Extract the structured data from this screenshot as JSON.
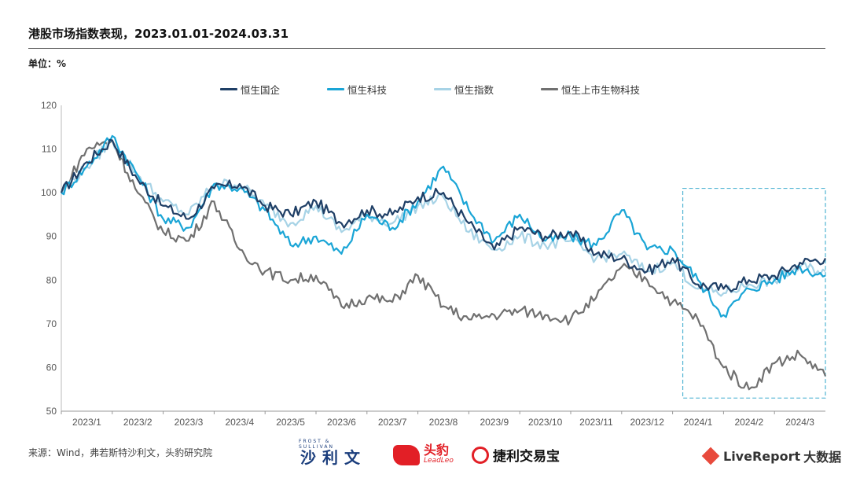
{
  "header": {
    "title": "港股市场指数表现，2023.01.01-2024.03.31",
    "unit_label": "单位：%"
  },
  "footer": {
    "source": "来源：Wind，弗若斯特沙利文，头豹研究院",
    "logo_shaliwen": "沙利文",
    "logo_shaliwen_sub": "FROST & SULLIVAN",
    "logo_leadleo": "头豹",
    "logo_leadleo_sub": "LeadLeo",
    "logo_jieli": "捷利交易宝",
    "logo_livereport": "LiveReport",
    "logo_livereport_suffix": "大数据"
  },
  "colors": {
    "hscei": "#1f3f66",
    "hstech": "#1aa5d6",
    "hsi": "#a7d3e6",
    "biotech": "#707070",
    "highlight_box": "#4fb3d2"
  },
  "chart_data": {
    "type": "line",
    "ylim": [
      50,
      120
    ],
    "yticks": [
      50,
      60,
      70,
      80,
      90,
      100,
      110,
      120
    ],
    "xticks": [
      "2023/1",
      "2023/2",
      "2023/3",
      "2023/4",
      "2023/5",
      "2023/6",
      "2023/7",
      "2023/8",
      "2023/9",
      "2023/10",
      "2023/11",
      "2023/12",
      "2024/1",
      "2024/2",
      "2024/3"
    ],
    "x_months": [
      0,
      0.5,
      1,
      1.5,
      2,
      2.5,
      3,
      3.5,
      4,
      4.5,
      5,
      5.5,
      6,
      6.5,
      7,
      7.5,
      8,
      8.5,
      9,
      9.5,
      10,
      10.5,
      11,
      11.5,
      12,
      12.5,
      13,
      13.5,
      14,
      14.5,
      15
    ],
    "highlight_range": {
      "x": [
        12.2,
        15.0
      ],
      "y": [
        53,
        101
      ]
    },
    "series": [
      {
        "name": "恒生国企",
        "key": "hscei",
        "values": [
          100,
          107,
          112,
          103,
          97,
          94,
          101,
          102,
          97,
          95,
          98,
          93,
          96,
          95,
          99,
          100,
          93,
          87,
          92,
          90,
          91,
          86,
          85,
          82,
          85,
          79,
          78,
          80,
          81,
          84,
          85
        ]
      },
      {
        "name": "恒生科技",
        "key": "hstech",
        "values": [
          100,
          106,
          113,
          104,
          94,
          92,
          102,
          101,
          96,
          88,
          90,
          86,
          95,
          92,
          98,
          106,
          96,
          89,
          95,
          89,
          90,
          88,
          96,
          87,
          87,
          80,
          72,
          78,
          80,
          83,
          81
        ]
      },
      {
        "name": "恒生指数",
        "key": "hsi",
        "values": [
          100,
          106,
          112,
          104,
          98,
          95,
          102,
          102,
          97,
          93,
          97,
          91,
          95,
          93,
          97,
          99,
          91,
          87,
          90,
          88,
          89,
          85,
          86,
          82,
          84,
          78,
          77,
          79,
          80,
          83,
          82
        ]
      },
      {
        "name": "恒生上市生物科技",
        "key": "biotech",
        "values": [
          100,
          110,
          112,
          100,
          91,
          89,
          98,
          87,
          82,
          80,
          81,
          74,
          76,
          75,
          81,
          74,
          71,
          72,
          73,
          72,
          71,
          76,
          83,
          80,
          75,
          71,
          60,
          55,
          61,
          63,
          58
        ]
      }
    ]
  }
}
